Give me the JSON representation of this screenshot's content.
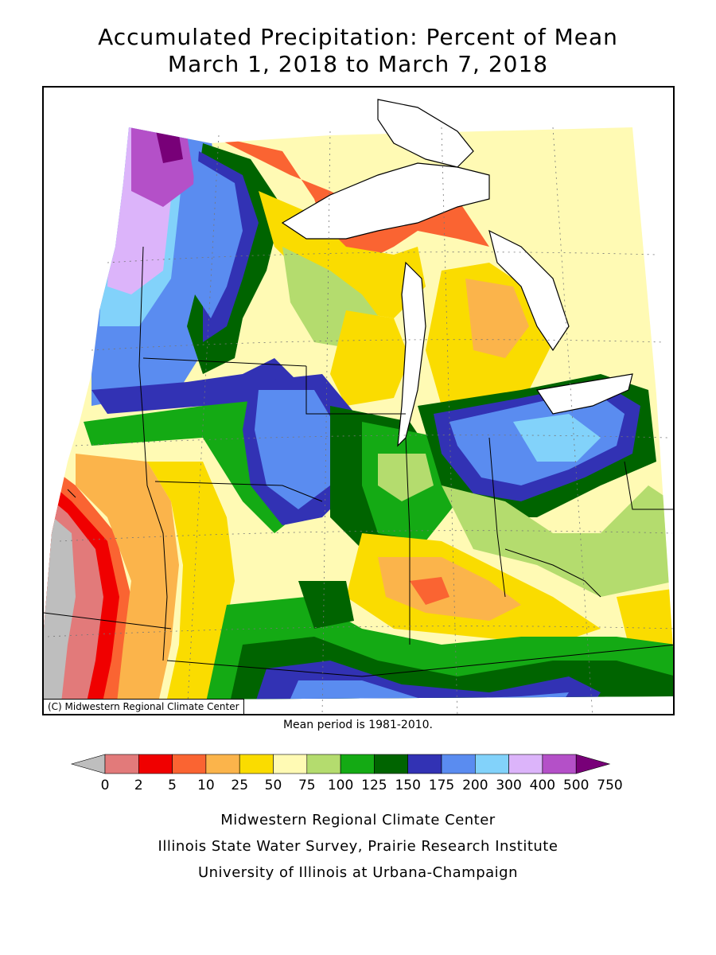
{
  "title": {
    "line1": "Accumulated Precipitation: Percent of Mean",
    "line2": "March 1, 2018 to March 7, 2018"
  },
  "map": {
    "copyright": "(C) Midwestern Regional Climate Center",
    "mean_note": "Mean period is 1981-2010."
  },
  "legend": {
    "bins": [
      {
        "color": "#bebebe"
      },
      {
        "color": "#e27a7a"
      },
      {
        "color": "#f00000"
      },
      {
        "color": "#fa6432"
      },
      {
        "color": "#fbb44b"
      },
      {
        "color": "#fadc00"
      },
      {
        "color": "#fffab4"
      },
      {
        "color": "#b4dc6e"
      },
      {
        "color": "#14aa14"
      },
      {
        "color": "#006400"
      },
      {
        "color": "#3232b4"
      },
      {
        "color": "#5a8cf0"
      },
      {
        "color": "#82d2fa"
      },
      {
        "color": "#dcb4fa"
      },
      {
        "color": "#b450c8"
      },
      {
        "color": "#780078"
      }
    ],
    "ticks": [
      "0",
      "2",
      "5",
      "10",
      "25",
      "50",
      "75",
      "100",
      "125",
      "150",
      "175",
      "200",
      "300",
      "400",
      "500",
      "750"
    ]
  },
  "credits": [
    "Midwestern Regional Climate Center",
    "Illinois State Water Survey, Prairie Research Institute",
    "University of Illinois at Urbana-Champaign"
  ]
}
